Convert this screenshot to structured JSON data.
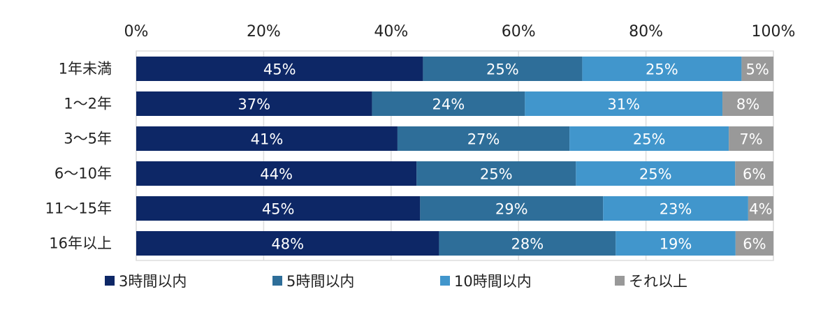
{
  "chart_data": {
    "type": "bar",
    "orientation": "horizontal",
    "stacked": true,
    "normalized": true,
    "title": "",
    "xlabel": "",
    "ylabel": "",
    "xlim": [
      0,
      100
    ],
    "x_ticks": [
      "0%",
      "20%",
      "40%",
      "60%",
      "80%",
      "100%"
    ],
    "x_axis_position": "top",
    "grid": true,
    "legend_position": "bottom",
    "categories": [
      "1年未満",
      "1～2年",
      "3～5年",
      "6～10年",
      "11～15年",
      "16年以上"
    ],
    "series": [
      {
        "name": "3時間以内",
        "color": "#0d2766",
        "values": [
          45,
          37,
          41,
          44,
          45,
          48
        ]
      },
      {
        "name": "5時間以内",
        "color": "#2e6e99",
        "values": [
          25,
          24,
          27,
          25,
          29,
          28
        ]
      },
      {
        "name": "10時間以内",
        "color": "#4196cc",
        "values": [
          25,
          31,
          25,
          25,
          23,
          19
        ]
      },
      {
        "name": "それ以上",
        "color": "#999999",
        "values": [
          5,
          8,
          7,
          6,
          4,
          6
        ]
      }
    ],
    "data_label_suffix": "%"
  }
}
